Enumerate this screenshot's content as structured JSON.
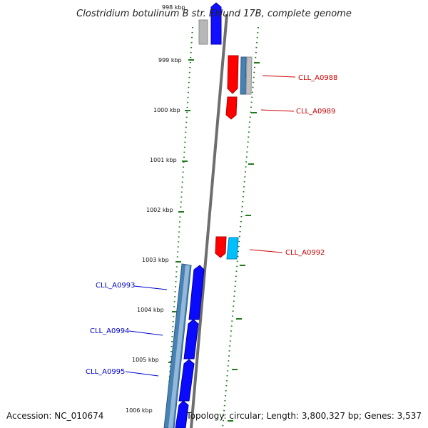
{
  "title": "Clostridium botulinum B str. Eklund 17B, complete genome",
  "footer": {
    "accession": "Accession: NC_010674",
    "topology": "Topology: circular; Length: 3,800,327 bp; Genes: 3,537"
  },
  "colors": {
    "forward_cds": "#0000ff",
    "forward_gene": "#4682b4",
    "reverse_cds": "#ff0000",
    "cyan_cds": "#00bfff",
    "grey_gene": "#aaaaaa",
    "backbone": "#808080",
    "tick_green": "#006400",
    "label_red": "#cc0000",
    "label_blue": "#0000cc"
  },
  "scale": {
    "labels": [
      "998 kbp",
      "999 kbp",
      "1000 kbp",
      "1001 kbp",
      "1002 kbp",
      "1003 kbp",
      "1004 kbp",
      "1005 kbp",
      "1006 kbp"
    ]
  },
  "gene_labels": [
    {
      "text": "CLL_A0988",
      "strand": "reverse"
    },
    {
      "text": "CLL_A0989",
      "strand": "reverse"
    },
    {
      "text": "CLL_A0992",
      "strand": "reverse"
    },
    {
      "text": "CLL_A0993",
      "strand": "forward"
    },
    {
      "text": "CLL_A0994",
      "strand": "forward"
    },
    {
      "text": "CLL_A0995",
      "strand": "forward"
    }
  ]
}
